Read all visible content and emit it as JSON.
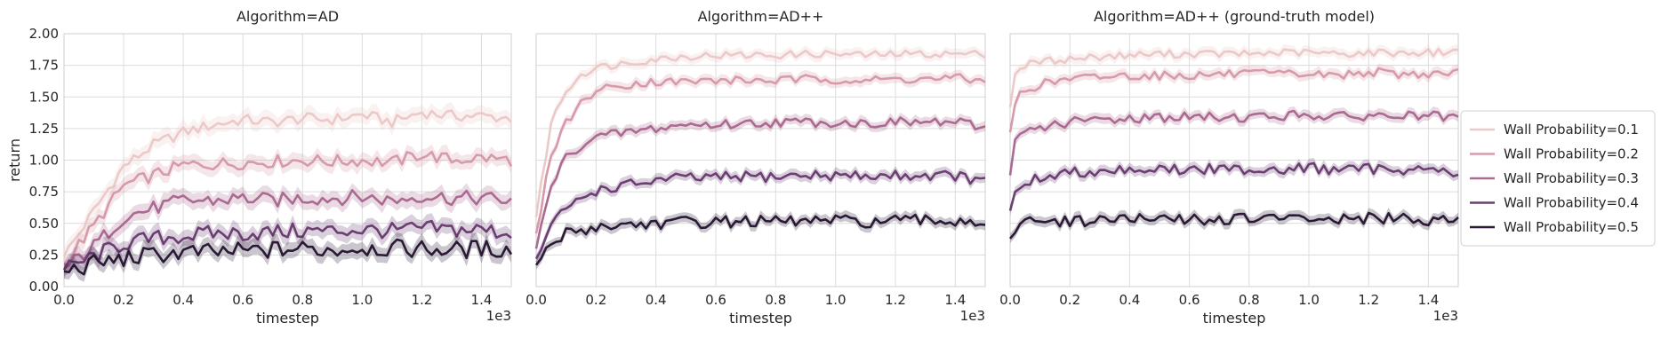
{
  "chart_data": [
    {
      "type": "line",
      "title": "Algorithm=AD",
      "xlabel": "timestep",
      "ylabel": "return",
      "x_offset_label": "1e3",
      "xlim": [
        0,
        1.5
      ],
      "ylim": [
        0,
        2.0
      ],
      "xticks": [
        "0.0",
        "0.2",
        "0.4",
        "0.6",
        "0.8",
        "1.0",
        "1.2",
        "1.4"
      ],
      "yticks": [
        "0.00",
        "0.25",
        "0.50",
        "0.75",
        "1.00",
        "1.25",
        "1.50",
        "1.75",
        "2.00"
      ],
      "grid": true,
      "x": [
        0.0,
        0.1,
        0.2,
        0.3,
        0.4,
        0.5,
        0.6,
        0.7,
        0.8,
        0.9,
        1.0,
        1.1,
        1.2,
        1.3,
        1.4,
        1.5
      ],
      "series": [
        {
          "name": "Wall Probability=0.1",
          "values": [
            0.24,
            0.6,
            0.95,
            1.12,
            1.22,
            1.28,
            1.32,
            1.3,
            1.33,
            1.32,
            1.36,
            1.3,
            1.38,
            1.35,
            1.35,
            1.33
          ]
        },
        {
          "name": "Wall Probability=0.2",
          "values": [
            0.18,
            0.48,
            0.8,
            0.88,
            0.96,
            0.97,
            0.98,
            0.99,
            1.0,
            0.99,
            1.0,
            0.98,
            1.05,
            1.0,
            1.02,
            1.0
          ]
        },
        {
          "name": "Wall Probability=0.3",
          "values": [
            0.14,
            0.32,
            0.55,
            0.62,
            0.68,
            0.68,
            0.7,
            0.68,
            0.7,
            0.7,
            0.71,
            0.68,
            0.72,
            0.7,
            0.7,
            0.68
          ]
        },
        {
          "name": "Wall Probability=0.4",
          "values": [
            0.13,
            0.24,
            0.34,
            0.38,
            0.4,
            0.42,
            0.42,
            0.43,
            0.44,
            0.44,
            0.45,
            0.44,
            0.46,
            0.45,
            0.45,
            0.42
          ]
        },
        {
          "name": "Wall Probability=0.5",
          "values": [
            0.12,
            0.18,
            0.22,
            0.25,
            0.27,
            0.27,
            0.28,
            0.29,
            0.3,
            0.29,
            0.31,
            0.3,
            0.3,
            0.29,
            0.3,
            0.29
          ]
        }
      ]
    },
    {
      "type": "line",
      "title": "Algorithm=AD++",
      "xlabel": "timestep",
      "ylabel": "",
      "x_offset_label": "1e3",
      "xlim": [
        0,
        1.5
      ],
      "ylim": [
        0,
        2.0
      ],
      "xticks": [
        "0.0",
        "0.2",
        "0.4",
        "0.6",
        "0.8",
        "1.0",
        "1.2",
        "1.4"
      ],
      "grid": true,
      "x": [
        0.0,
        0.05,
        0.1,
        0.15,
        0.2,
        0.3,
        0.4,
        0.5,
        0.6,
        0.7,
        0.8,
        0.9,
        1.0,
        1.1,
        1.2,
        1.3,
        1.4,
        1.5
      ],
      "series": [
        {
          "name": "Wall Probability=0.1",
          "values": [
            0.55,
            1.3,
            1.55,
            1.68,
            1.73,
            1.77,
            1.8,
            1.82,
            1.83,
            1.83,
            1.83,
            1.84,
            1.84,
            1.83,
            1.84,
            1.84,
            1.84,
            1.84
          ]
        },
        {
          "name": "Wall Probability=0.2",
          "values": [
            0.42,
            1.05,
            1.3,
            1.45,
            1.55,
            1.6,
            1.62,
            1.62,
            1.63,
            1.63,
            1.63,
            1.64,
            1.64,
            1.63,
            1.64,
            1.64,
            1.65,
            1.62
          ]
        },
        {
          "name": "Wall Probability=0.3",
          "values": [
            0.3,
            0.8,
            1.02,
            1.12,
            1.18,
            1.22,
            1.25,
            1.28,
            1.28,
            1.29,
            1.3,
            1.3,
            1.3,
            1.29,
            1.3,
            1.3,
            1.3,
            1.25
          ]
        },
        {
          "name": "Wall Probability=0.4",
          "values": [
            0.22,
            0.48,
            0.62,
            0.7,
            0.76,
            0.8,
            0.84,
            0.86,
            0.86,
            0.87,
            0.87,
            0.88,
            0.88,
            0.87,
            0.88,
            0.88,
            0.88,
            0.82
          ]
        },
        {
          "name": "Wall Probability=0.5",
          "values": [
            0.17,
            0.33,
            0.42,
            0.45,
            0.47,
            0.49,
            0.5,
            0.51,
            0.51,
            0.52,
            0.51,
            0.52,
            0.52,
            0.51,
            0.52,
            0.52,
            0.52,
            0.51
          ]
        }
      ]
    },
    {
      "type": "line",
      "title": "Algorithm=AD++ (ground-truth model)",
      "xlabel": "timestep",
      "ylabel": "",
      "x_offset_label": "1e3",
      "xlim": [
        0,
        1.5
      ],
      "ylim": [
        0,
        2.0
      ],
      "xticks": [
        "0.0",
        "0.2",
        "0.4",
        "0.6",
        "0.8",
        "1.0",
        "1.2",
        "1.4"
      ],
      "grid": true,
      "x": [
        0.0,
        0.02,
        0.05,
        0.1,
        0.2,
        0.3,
        0.4,
        0.5,
        0.6,
        0.7,
        0.8,
        0.9,
        1.0,
        1.1,
        1.2,
        1.3,
        1.4,
        1.5
      ],
      "series": [
        {
          "name": "Wall Probability=0.1",
          "values": [
            1.42,
            1.72,
            1.75,
            1.78,
            1.8,
            1.82,
            1.83,
            1.84,
            1.84,
            1.84,
            1.84,
            1.85,
            1.85,
            1.84,
            1.85,
            1.85,
            1.85,
            1.86
          ]
        },
        {
          "name": "Wall Probability=0.2",
          "values": [
            1.22,
            1.5,
            1.55,
            1.6,
            1.64,
            1.66,
            1.67,
            1.67,
            1.67,
            1.68,
            1.68,
            1.68,
            1.68,
            1.67,
            1.7,
            1.68,
            1.68,
            1.7
          ]
        },
        {
          "name": "Wall Probability=0.3",
          "values": [
            0.88,
            1.18,
            1.22,
            1.26,
            1.3,
            1.32,
            1.33,
            1.34,
            1.34,
            1.34,
            1.34,
            1.35,
            1.36,
            1.34,
            1.35,
            1.35,
            1.35,
            1.32
          ]
        },
        {
          "name": "Wall Probability=0.4",
          "values": [
            0.6,
            0.78,
            0.82,
            0.86,
            0.9,
            0.92,
            0.93,
            0.93,
            0.92,
            0.93,
            0.93,
            0.93,
            0.94,
            0.92,
            0.93,
            0.93,
            0.93,
            0.9
          ]
        },
        {
          "name": "Wall Probability=0.5",
          "values": [
            0.38,
            0.48,
            0.5,
            0.51,
            0.52,
            0.53,
            0.53,
            0.53,
            0.53,
            0.53,
            0.54,
            0.53,
            0.54,
            0.53,
            0.54,
            0.53,
            0.53,
            0.56
          ]
        }
      ]
    }
  ],
  "legend": {
    "placement": "right",
    "entries": [
      {
        "label": "Wall Probability=0.1",
        "color": "#ecc9c9"
      },
      {
        "label": "Wall Probability=0.2",
        "color": "#d69aaa"
      },
      {
        "label": "Wall Probability=0.3",
        "color": "#ab6a91"
      },
      {
        "label": "Wall Probability=0.4",
        "color": "#6c3f72"
      },
      {
        "label": "Wall Probability=0.5",
        "color": "#2a1a36"
      }
    ]
  }
}
